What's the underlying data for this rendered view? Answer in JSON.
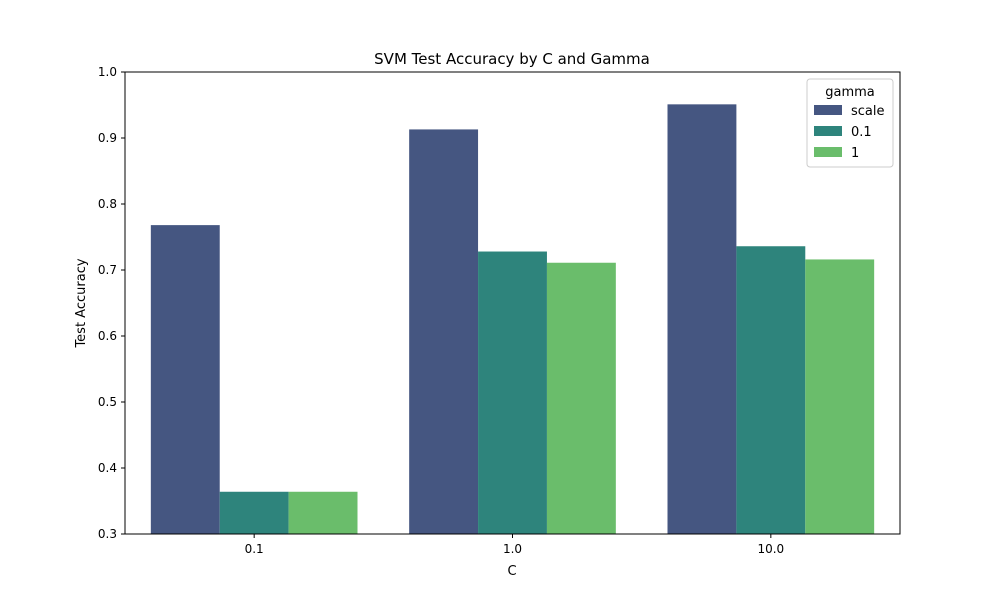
{
  "colors": {
    "scale": "#455681",
    "0.1": "#2e847c",
    "1": "#6abd6b",
    "axis": "#000000",
    "legend_border": "#cccccc"
  },
  "chart_data": {
    "type": "bar",
    "title": "SVM Test Accuracy by C and Gamma",
    "xlabel": "C",
    "ylabel": "Test Accuracy",
    "categories": [
      "0.1",
      "1.0",
      "10.0"
    ],
    "ylim": [
      0.3,
      1.0
    ],
    "yticks": [
      "0.3",
      "0.4",
      "0.5",
      "0.6",
      "0.7",
      "0.8",
      "0.9",
      "1.0"
    ],
    "grid": false,
    "legend": {
      "title": "gamma",
      "position": "top-right"
    },
    "series": [
      {
        "name": "scale",
        "values": [
          0.768,
          0.913,
          0.951
        ]
      },
      {
        "name": "0.1",
        "values": [
          0.364,
          0.728,
          0.736
        ]
      },
      {
        "name": "1",
        "values": [
          0.364,
          0.711,
          0.716
        ]
      }
    ]
  }
}
